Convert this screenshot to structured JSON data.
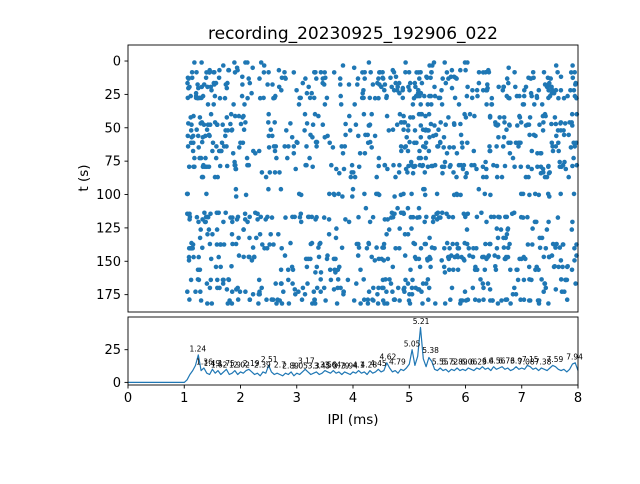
{
  "title": "recording_20230925_192906_022",
  "chart_data": [
    {
      "type": "scatter",
      "title": "recording_20230925_192906_022",
      "xlabel": "IPI (ms)",
      "ylabel": "t (s)",
      "xlim": [
        0,
        8
      ],
      "ylim": [
        -12,
        188
      ],
      "y_inverted": true,
      "xticks": [
        0,
        1,
        2,
        3,
        4,
        5,
        6,
        7,
        8
      ],
      "yticks": [
        0,
        25,
        50,
        75,
        100,
        125,
        150,
        175
      ],
      "marker_color": "#1f77b4",
      "marker_radius": 2.3,
      "x_data_range": [
        1.05,
        7.98
      ],
      "t_data_range": [
        0,
        183
      ],
      "generator": {
        "seed": 20230925,
        "n_rows": 92,
        "row_points_min": 4,
        "row_points_max": 26,
        "t_band_weights": [
          [
            0,
            8,
            3.0
          ],
          [
            8,
            18,
            1.8
          ],
          [
            18,
            28,
            2.4
          ],
          [
            28,
            42,
            1.1
          ],
          [
            42,
            58,
            2.4
          ],
          [
            58,
            78,
            1.1
          ],
          [
            78,
            102,
            2.0
          ],
          [
            102,
            112,
            1.4
          ],
          [
            112,
            152,
            2.4
          ],
          [
            152,
            164,
            1.6
          ],
          [
            164,
            172,
            1.0
          ],
          [
            172,
            183,
            2.0
          ]
        ],
        "x_band_weights": [
          [
            1.05,
            1.45,
            3.0
          ],
          [
            1.45,
            2.2,
            2.0
          ],
          [
            2.2,
            3.4,
            1.5
          ],
          [
            3.4,
            4.8,
            1.3
          ],
          [
            4.8,
            5.5,
            2.2
          ],
          [
            5.5,
            6.6,
            1.5
          ],
          [
            6.6,
            7.98,
            1.8
          ]
        ]
      }
    },
    {
      "type": "line",
      "xlabel": "IPI (ms)",
      "line_color": "#1f77b4",
      "x_start": 0,
      "x_step": 0.05,
      "xlim": [
        0,
        8
      ],
      "ylim": [
        -2,
        50
      ],
      "yticks": [
        0,
        25
      ],
      "values": [
        0,
        0,
        0,
        0,
        0,
        0,
        0,
        0,
        0,
        0,
        0,
        0,
        0,
        0,
        0,
        0,
        0,
        0,
        0,
        0,
        0,
        2,
        6,
        9,
        13,
        21,
        9,
        11,
        7,
        6,
        10,
        7,
        9,
        6,
        8,
        10,
        6,
        7,
        9,
        6,
        8,
        7,
        9,
        10,
        8,
        6,
        7,
        5,
        8,
        7,
        13,
        8,
        6,
        7,
        6,
        5,
        7,
        6,
        8,
        5,
        7,
        6,
        8,
        10,
        8,
        6,
        7,
        8,
        6,
        7,
        9,
        8,
        7,
        9,
        7,
        8,
        6,
        8,
        7,
        6,
        8,
        7,
        9,
        7,
        8,
        6,
        9,
        7,
        8,
        10,
        8,
        9,
        15,
        11,
        8,
        9,
        7,
        10,
        9,
        11,
        14,
        25,
        13,
        20,
        42,
        18,
        12,
        19,
        16,
        10,
        9,
        11,
        9,
        10,
        8,
        10,
        9,
        11,
        9,
        10,
        9,
        11,
        10,
        9,
        11,
        10,
        12,
        10,
        11,
        9,
        12,
        10,
        11,
        12,
        10,
        11,
        9,
        10,
        12,
        10,
        11,
        10,
        13,
        12,
        10,
        11,
        9,
        11,
        10,
        9,
        11,
        13,
        12,
        10,
        9,
        10,
        8,
        10,
        14,
        15,
        9
      ],
      "annotations": [
        [
          1.24,
          22,
          "1.24"
        ],
        [
          1.36,
          12,
          "1.36"
        ],
        [
          1.49,
          11,
          "1.49"
        ],
        [
          1.62,
          10,
          "1.62"
        ],
        [
          1.75,
          11,
          "1.75"
        ],
        [
          1.9,
          10,
          "1.9"
        ],
        [
          2.02,
          10,
          "2.02"
        ],
        [
          2.19,
          11,
          "2.19"
        ],
        [
          2.39,
          10,
          "2.39"
        ],
        [
          2.51,
          14,
          "2.51"
        ],
        [
          2.7,
          10,
          "2.7"
        ],
        [
          2.89,
          9,
          "2.89"
        ],
        [
          3.05,
          9,
          "3.05"
        ],
        [
          3.17,
          13,
          "3.17"
        ],
        [
          3.3,
          9,
          "3.3"
        ],
        [
          3.45,
          9,
          "3.45"
        ],
        [
          3.56,
          10,
          "3.56"
        ],
        [
          3.64,
          10,
          "3.64"
        ],
        [
          3.79,
          9,
          "3.79"
        ],
        [
          3.94,
          9,
          "3.94"
        ],
        [
          4.1,
          10,
          "4.1"
        ],
        [
          4.28,
          10,
          "4.28"
        ],
        [
          4.45,
          11,
          "4.45"
        ],
        [
          4.62,
          16,
          "4.62"
        ],
        [
          4.79,
          12,
          "4.79"
        ],
        [
          5.05,
          26,
          "5.05"
        ],
        [
          5.21,
          43,
          "5.21"
        ],
        [
          5.38,
          21,
          "5.38"
        ],
        [
          5.55,
          12,
          "5.55"
        ],
        [
          5.72,
          12,
          "5.72"
        ],
        [
          5.89,
          12,
          "5.89"
        ],
        [
          6.06,
          12,
          "6.06"
        ],
        [
          6.23,
          12,
          "6.23"
        ],
        [
          6.4,
          13,
          "6.4"
        ],
        [
          6.56,
          13,
          "6.56"
        ],
        [
          6.73,
          13,
          "6.73"
        ],
        [
          6.9,
          13,
          "6.9"
        ],
        [
          7.08,
          12,
          "7.08"
        ],
        [
          7.15,
          14,
          "7.15"
        ],
        [
          7.38,
          12,
          "7.38"
        ],
        [
          7.59,
          14,
          "7.59"
        ],
        [
          7.94,
          16,
          "7.94"
        ]
      ]
    }
  ]
}
